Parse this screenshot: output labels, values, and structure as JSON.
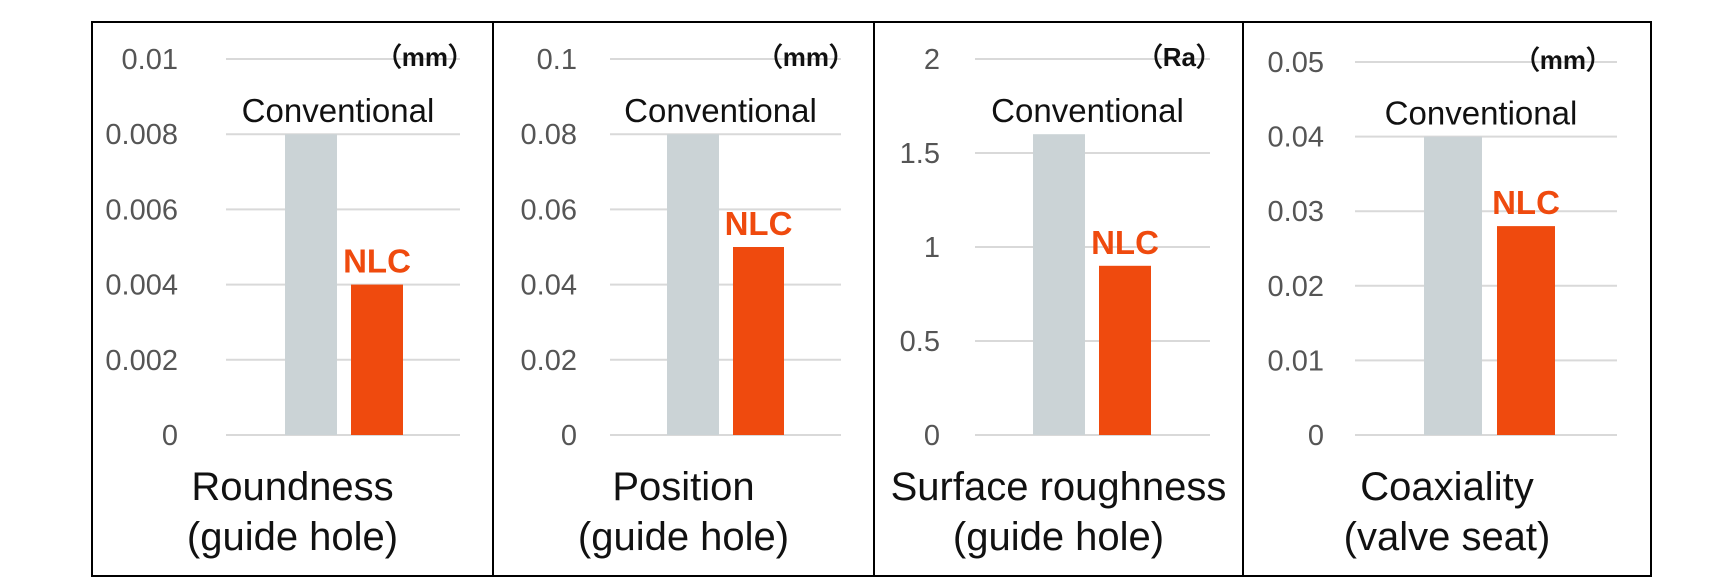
{
  "colors": {
    "conventional": "#cbd3d6",
    "nlc": "#ef4a0e",
    "grid": "#d9d9d9",
    "frame": "#000000"
  },
  "chart_data": [
    {
      "type": "bar",
      "unit": "（mm）",
      "categories": [
        "Conventional",
        "NLC"
      ],
      "values": [
        0.008,
        0.004
      ],
      "ylim": [
        0,
        0.01
      ],
      "yticks": [
        "0",
        "0.002",
        "0.004",
        "0.006",
        "0.008",
        "0.01"
      ],
      "caption": [
        "Roundness",
        "(guide hole)"
      ],
      "grid": true
    },
    {
      "type": "bar",
      "unit": "（mm）",
      "categories": [
        "Conventional",
        "NLC"
      ],
      "values": [
        0.08,
        0.05
      ],
      "ylim": [
        0,
        0.1
      ],
      "yticks": [
        "0",
        "0.02",
        "0.04",
        "0.06",
        "0.08",
        "0.1"
      ],
      "caption": [
        "Position",
        "(guide hole)"
      ],
      "grid": true
    },
    {
      "type": "bar",
      "unit": "（Ra）",
      "categories": [
        "Conventional",
        "NLC"
      ],
      "values": [
        1.6,
        0.9
      ],
      "ylim": [
        0,
        2
      ],
      "yticks": [
        "0",
        "0.5",
        "1",
        "1.5",
        "2"
      ],
      "caption": [
        "Surface roughness",
        "(guide hole)"
      ],
      "grid": true
    },
    {
      "type": "bar",
      "unit": "（mm）",
      "categories": [
        "Conventional",
        "NLC"
      ],
      "values": [
        0.04,
        0.028
      ],
      "ylim": [
        0,
        0.05
      ],
      "yticks": [
        "0",
        "0.01",
        "0.02",
        "0.03",
        "0.04",
        "0.05"
      ],
      "caption": [
        "Coaxiality",
        "(valve seat)"
      ],
      "grid": true
    }
  ]
}
